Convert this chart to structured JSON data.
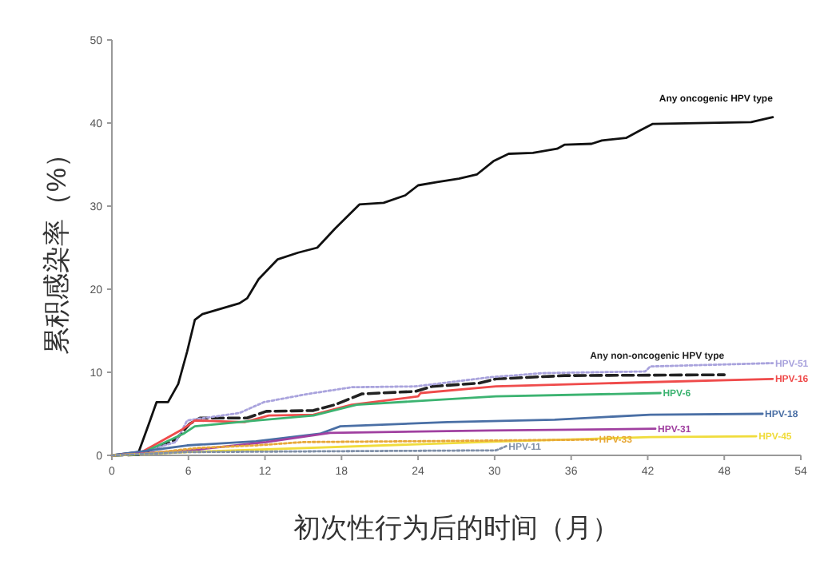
{
  "chart_data": {
    "type": "line",
    "xlabel": "初次性行为后的时间（月）",
    "ylabel": "累积感染率（%）",
    "xlim": [
      0,
      54
    ],
    "xticks": [
      0,
      6,
      12,
      18,
      24,
      30,
      36,
      42,
      48,
      54
    ],
    "ylim": [
      0,
      50
    ],
    "yticks": [
      0,
      10,
      20,
      30,
      40,
      50
    ],
    "grid": false,
    "marker": "none",
    "series": [
      {
        "name": "Any oncogenic HPV type",
        "color": "#111111",
        "line_style": "solid",
        "x": [
          0,
          2.1,
          2.9,
          3.5,
          4.4,
          5.2,
          5.9,
          6.5,
          7.1,
          10.0,
          10.6,
          11.5,
          13.0,
          14.6,
          16.1,
          17.5,
          19.4,
          21.3,
          23.0,
          24.0,
          25.5,
          27.2,
          28.6,
          29.9,
          31.1,
          33.0,
          34.9,
          35.5,
          37.6,
          38.4,
          40.3,
          41.4,
          42.4,
          50.1,
          51.8
        ],
        "values": [
          0,
          0.4,
          3.8,
          6.4,
          6.4,
          8.6,
          12.5,
          16.3,
          17.0,
          18.3,
          18.9,
          21.2,
          23.6,
          24.4,
          25.0,
          27.3,
          30.2,
          30.4,
          31.3,
          32.5,
          32.9,
          33.3,
          33.8,
          35.4,
          36.3,
          36.4,
          36.9,
          37.4,
          37.5,
          37.9,
          38.2,
          39.1,
          39.9,
          40.1,
          40.7
        ]
      },
      {
        "name": "Any non-oncogenic HPV type",
        "color": "#222222",
        "line_style": "dashed",
        "x": [
          0,
          2.1,
          5.0,
          6.1,
          6.9,
          10.6,
          12.1,
          15.8,
          17.5,
          19.6,
          23.8,
          25.1,
          28.8,
          30.1,
          35.5,
          48.0
        ],
        "values": [
          0,
          0.1,
          1.9,
          3.8,
          4.5,
          4.5,
          5.3,
          5.4,
          6.1,
          7.4,
          7.7,
          8.3,
          8.7,
          9.2,
          9.6,
          9.7
        ]
      },
      {
        "name": "HPV-51",
        "color": "#a9a3dd",
        "line_style": "dotted",
        "x": [
          0,
          2.1,
          5.0,
          5.9,
          10.0,
          11.9,
          15.4,
          18.8,
          23.8,
          29.6,
          33.8,
          41.8,
          42.2,
          51.8
        ],
        "values": [
          0,
          0.3,
          1.6,
          4.2,
          5.1,
          6.4,
          7.4,
          8.2,
          8.3,
          9.4,
          9.9,
          10.1,
          10.7,
          11.1
        ]
      },
      {
        "name": "HPV-16",
        "color": "#ef4b4b",
        "line_style": "solid",
        "x": [
          0,
          2.1,
          5.6,
          6.5,
          10.4,
          12.3,
          15.8,
          18.8,
          24.0,
          24.2,
          30.1,
          41.8,
          51.8
        ],
        "values": [
          0,
          0.2,
          3.2,
          4.2,
          4.0,
          4.8,
          4.9,
          6.1,
          7.1,
          7.5,
          8.3,
          8.8,
          9.2
        ]
      },
      {
        "name": "HPV-6",
        "color": "#3cb371",
        "line_style": "solid",
        "x": [
          0,
          2.1,
          5.6,
          6.5,
          11.3,
          15.8,
          19.2,
          24.6,
          30.1,
          43.0
        ],
        "values": [
          0,
          0.1,
          2.6,
          3.5,
          4.2,
          4.8,
          6.1,
          6.6,
          7.1,
          7.5
        ]
      },
      {
        "name": "HPV-18",
        "color": "#4a6fa5",
        "line_style": "solid",
        "x": [
          0,
          5.9,
          11.3,
          16.3,
          17.9,
          26.3,
          34.7,
          42.2,
          51.0
        ],
        "values": [
          0,
          1.2,
          1.7,
          2.6,
          3.5,
          4.0,
          4.3,
          4.9,
          5.0
        ]
      },
      {
        "name": "HPV-31",
        "color": "#a040a0",
        "line_style": "solid",
        "x": [
          0,
          6.1,
          12.1,
          17.1,
          29.6,
          42.6
        ],
        "values": [
          0,
          0.6,
          1.6,
          2.7,
          3.0,
          3.2
        ]
      },
      {
        "name": "HPV-45",
        "color": "#f0dc3c",
        "line_style": "solid",
        "x": [
          0,
          5.9,
          30.9,
          42.2,
          50.5
        ],
        "values": [
          0,
          0.4,
          1.7,
          2.2,
          2.3
        ]
      },
      {
        "name": "HPV-33",
        "color": "#e8a838",
        "line_style": "dotted",
        "x": [
          0,
          2.6,
          6.8,
          11.3,
          15.0,
          23.8,
          38.0
        ],
        "values": [
          0,
          0.2,
          0.9,
          1.2,
          1.6,
          1.7,
          1.9
        ]
      },
      {
        "name": "HPV-11",
        "color": "#8090a8",
        "line_style": "dotted",
        "x": [
          0,
          5.9,
          30.1,
          30.9
        ],
        "values": [
          0,
          0.4,
          0.6,
          1.1
        ]
      }
    ]
  }
}
